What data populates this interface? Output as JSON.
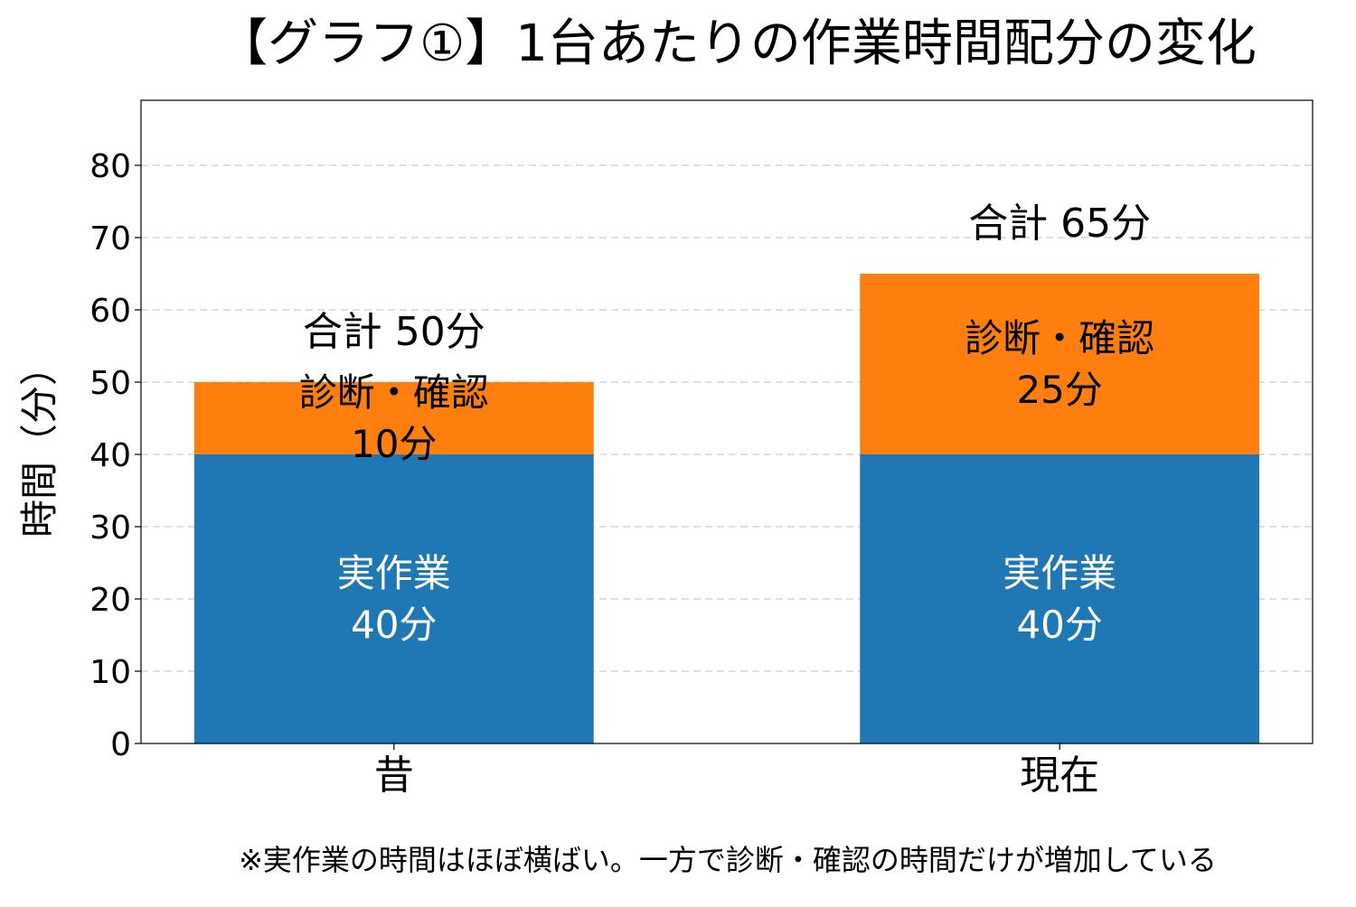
{
  "chart_data": {
    "type": "bar",
    "stacked": true,
    "title": "【グラフ①】1台あたりの作業時間配分の変化",
    "xlabel": "",
    "ylabel": "時間（分）",
    "categories": [
      "昔",
      "現在"
    ],
    "ylim": [
      0,
      89
    ],
    "yticks": [
      0,
      10,
      20,
      30,
      40,
      50,
      60,
      70,
      80
    ],
    "grid": "y-dashed",
    "series": [
      {
        "key": "work",
        "values": [
          40,
          40
        ],
        "color": "#1f77b4",
        "label_color": "#ffffff",
        "labels": [
          [
            "実作業",
            "40分"
          ],
          [
            "実作業",
            "40分"
          ]
        ]
      },
      {
        "key": "diag",
        "values": [
          10,
          25
        ],
        "color": "#ff7f0e",
        "label_color": "#000000",
        "labels": [
          [
            "診断・確認",
            "10分"
          ],
          [
            "診断・確認",
            "25分"
          ]
        ]
      }
    ],
    "totals": [
      "合計 50分",
      "合計 65分"
    ],
    "footnote": "※実作業の時間はほぼ横ばい。一方で診断・確認の時間だけが増加している"
  }
}
